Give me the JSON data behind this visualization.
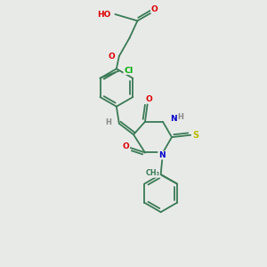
{
  "bg_color": "#e8eae8",
  "bond_color": "#3a7a55",
  "atom_colors": {
    "O": "#dd0000",
    "N": "#0000cc",
    "S": "#bbbb00",
    "Cl": "#00aa00",
    "H": "#888888",
    "C": "#3a7a55"
  }
}
